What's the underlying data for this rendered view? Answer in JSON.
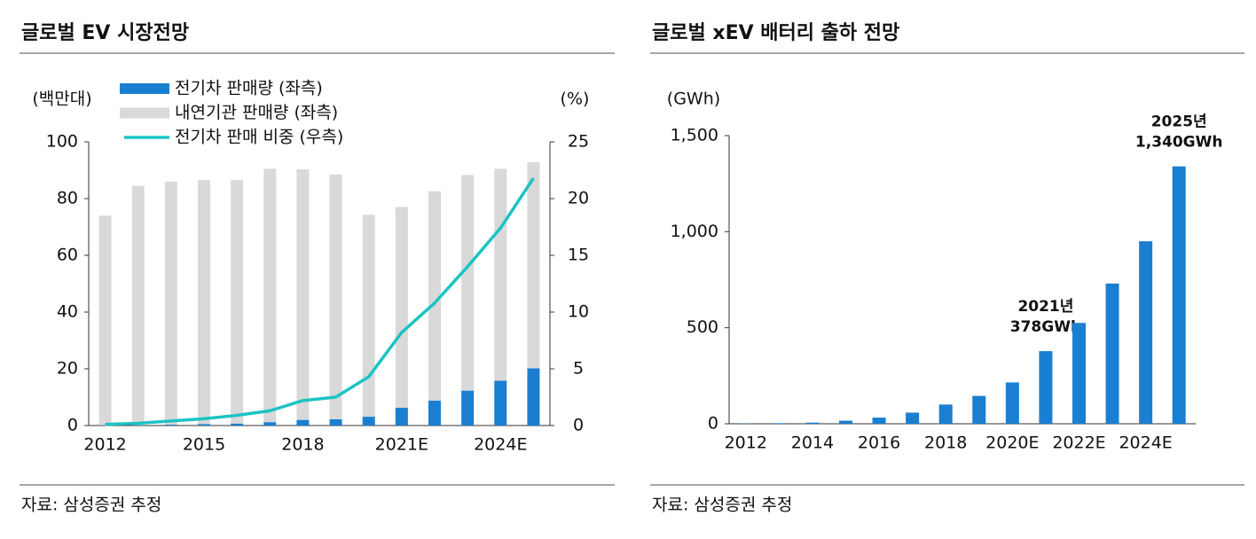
{
  "chart_data": [
    {
      "type": "bar",
      "title": "글로벌 EV 시장전망",
      "source": "자료: 삼성증권 추정",
      "stacked": true,
      "ylabel": "(백만대)",
      "y2label": "(%)",
      "categories": [
        "2012",
        null,
        null,
        "2015",
        null,
        null,
        "2018",
        null,
        null,
        "2021E",
        null,
        null,
        "2024E",
        null
      ],
      "series": [
        {
          "name": "전기차 판매량 (좌측)",
          "type": "bar",
          "color": "#1a7fd0",
          "values": [
            0.1,
            0.2,
            0.3,
            0.5,
            0.7,
            1.2,
            2.0,
            2.2,
            3.1,
            6.3,
            8.8,
            12.3,
            15.8,
            20.2
          ]
        },
        {
          "name": "내연기관 판매량 (좌측)",
          "type": "bar",
          "color": "#d9d9d9",
          "values": [
            73.9,
            84.3,
            85.7,
            86.0,
            85.8,
            89.3,
            88.3,
            86.3,
            71.2,
            70.7,
            73.8,
            76.0,
            74.7,
            72.6
          ]
        },
        {
          "name": "전기차 판매 비중 (우측)",
          "type": "line",
          "axis": "y2",
          "color": "#1cc3c3",
          "values": [
            0.1,
            0.2,
            0.4,
            0.6,
            0.9,
            1.3,
            2.2,
            2.5,
            4.3,
            8.2,
            10.8,
            14.0,
            17.4,
            21.8
          ]
        }
      ],
      "ylim": [
        0,
        100
      ],
      "yticks": [
        0,
        20,
        40,
        60,
        80,
        100
      ],
      "y2lim": [
        0,
        25
      ],
      "y2ticks": [
        0,
        5,
        10,
        15,
        20,
        25
      ]
    },
    {
      "type": "bar",
      "title": "글로벌 xEV 배터리 출하 전망",
      "source": "자료: 삼성증권 추정",
      "ylabel": "(GWh)",
      "categories": [
        "2012",
        null,
        "2014",
        null,
        "2016",
        null,
        "2018",
        null,
        "2020E",
        null,
        "2022E",
        null,
        "2024E",
        null
      ],
      "series": [
        {
          "type": "bar",
          "color": "#1a7fd0",
          "values": [
            1,
            3,
            6,
            16,
            32,
            58,
            100,
            145,
            215,
            378,
            525,
            730,
            950,
            1340
          ],
          "value_labels": [
            null,
            null,
            null,
            null,
            null,
            null,
            null,
            null,
            null,
            "378GWh",
            null,
            null,
            null,
            "1,340GWh"
          ],
          "annotations": [
            null,
            null,
            null,
            null,
            null,
            null,
            null,
            null,
            null,
            "2021년",
            null,
            null,
            null,
            "2025년"
          ]
        }
      ],
      "ylim": [
        0,
        1500
      ],
      "yticks": [
        0,
        500,
        {
          "value": 1000,
          "label": "1,000"
        },
        {
          "value": 1500,
          "label": "1,500"
        }
      ]
    }
  ]
}
